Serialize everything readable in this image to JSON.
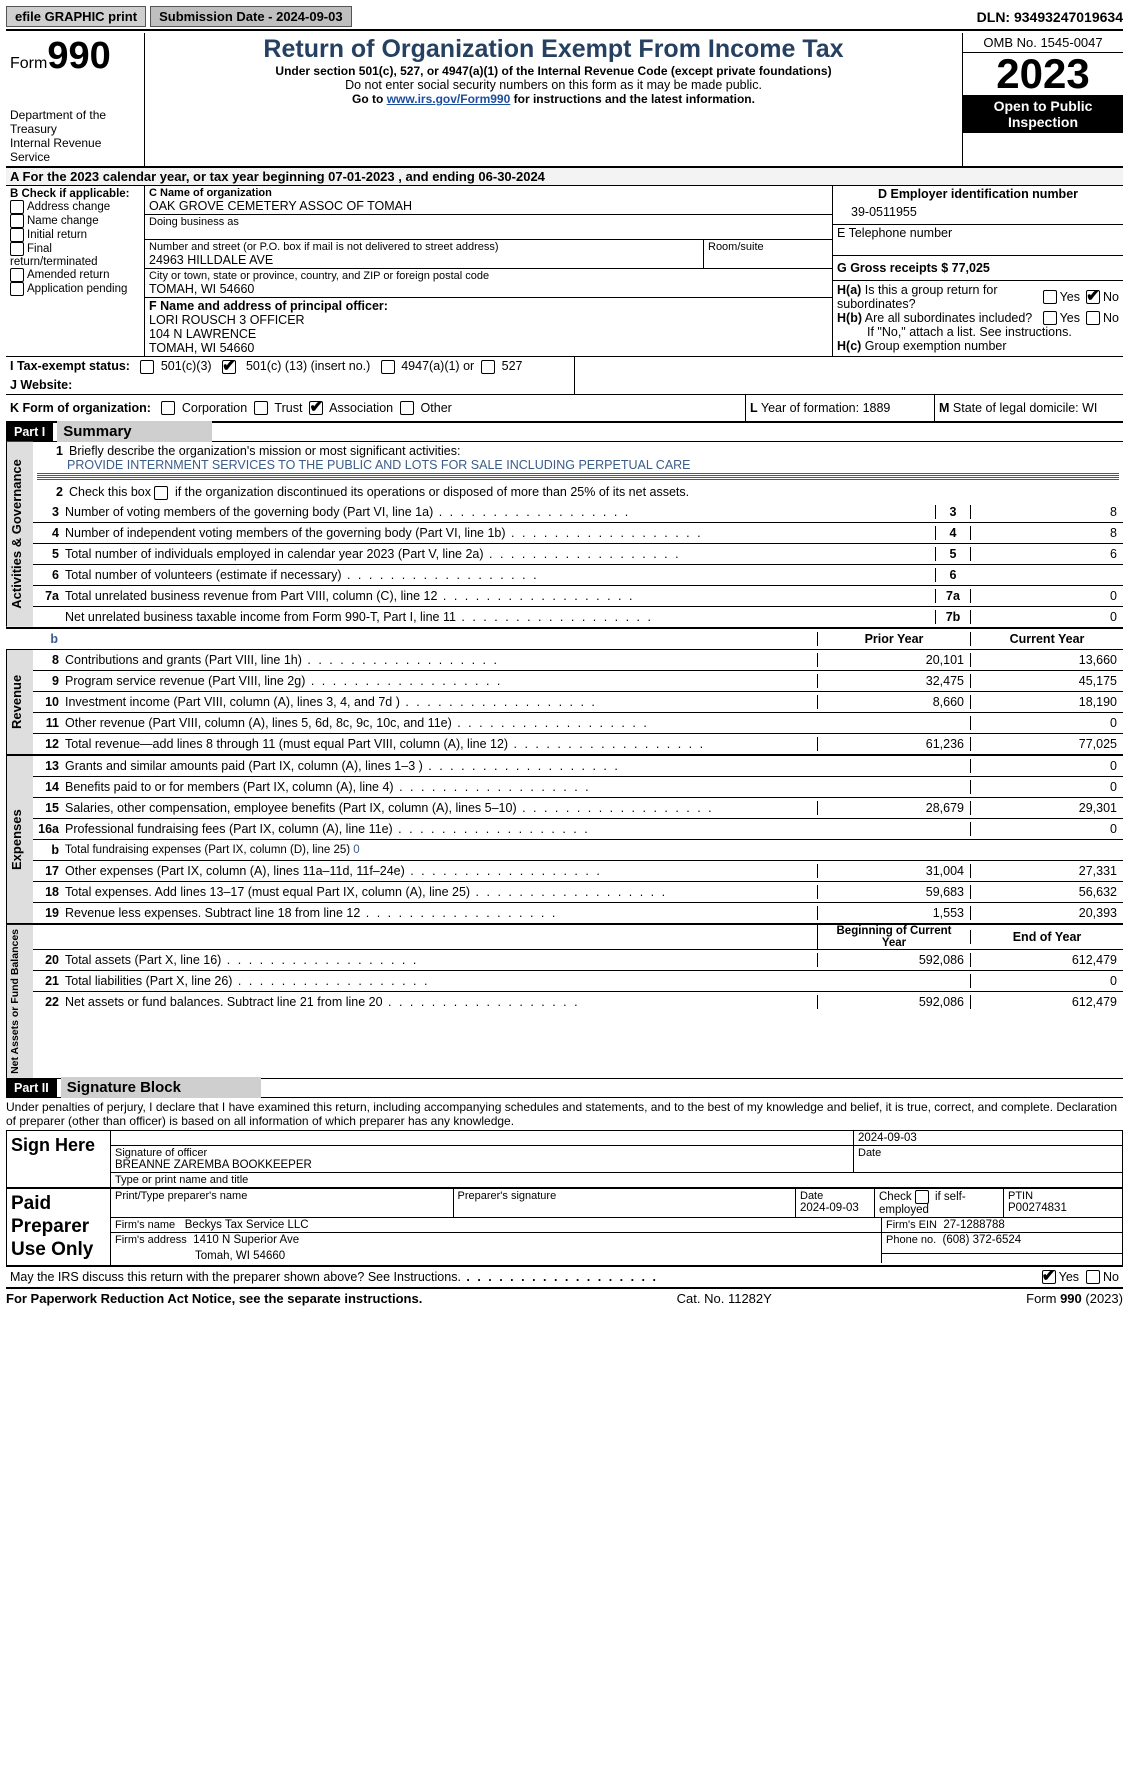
{
  "topbar": {
    "efile": "efile GRAPHIC print",
    "sub_label": "Submission Date - 2024-09-03",
    "dln": "DLN: 93493247019634"
  },
  "header": {
    "form_label": "Form",
    "form_num": "990",
    "title": "Return of Organization Exempt From Income Tax",
    "subtitle1": "Under section 501(c), 527, or 4947(a)(1) of the Internal Revenue Code (except private foundations)",
    "subtitle2": "Do not enter social security numbers on this form as it may be made public.",
    "subtitle3_pre": "Go to ",
    "subtitle3_link": "www.irs.gov/Form990",
    "subtitle3_post": " for instructions and the latest information.",
    "dept": "Department of the Treasury",
    "irs": "Internal Revenue Service",
    "omb": "OMB No. 1545-0047",
    "year": "2023",
    "inspect1": "Open to Public",
    "inspect2": "Inspection"
  },
  "section_a": "A For the 2023 calendar year, or tax year beginning 07-01-2023   , and ending 06-30-2024",
  "col_b": {
    "label": "B Check if applicable:",
    "items": [
      "Address change",
      "Name change",
      "Initial return",
      "Final return/terminated",
      "Amended return",
      "Application pending"
    ]
  },
  "col_c": {
    "c_label": "C Name of organization",
    "org_name": "OAK GROVE CEMETERY ASSOC OF TOMAH",
    "dba_label": "Doing business as",
    "addr_label": "Number and street (or P.O. box if mail is not delivered to street address)",
    "addr": "24963 HILLDALE AVE",
    "room_label": "Room/suite",
    "city_label": "City or town, state or province, country, and ZIP or foreign postal code",
    "city": "TOMAH, WI  54660",
    "f_label": "F  Name and address of principal officer:",
    "f_name": "LORI ROUSCH 3 OFFICER",
    "f_addr1": "104 N LAWRENCE",
    "f_addr2": "TOMAH, WI  54660"
  },
  "col_right": {
    "d_label": "D Employer identification number",
    "ein": "39-0511955",
    "e_label": "E Telephone number",
    "g_label": "G Gross receipts $ 77,025",
    "ha_label": "H(a)  Is this a group return for subordinates?",
    "hb_label": "H(b)  Are all subordinates included?",
    "hb_note": "If \"No,\" attach a list. See instructions.",
    "hc_label": "H(c)  Group exemption number",
    "yes": "Yes",
    "no": "No"
  },
  "row_i": {
    "label": "I    Tax-exempt status:",
    "opt1": "501(c)(3)",
    "opt2_pre": "501(c) (",
    "opt2_val": "13",
    "opt2_post": ") (insert no.)",
    "opt3": "4947(a)(1) or",
    "opt4": "527"
  },
  "row_j": {
    "label": "J   Website:"
  },
  "row_k": {
    "label": "K Form of organization:",
    "opts": [
      "Corporation",
      "Trust",
      "Association",
      "Other"
    ],
    "l_label": "L Year of formation: 1889",
    "m_label": "M State of legal domicile: WI"
  },
  "part1": {
    "header": "Part I",
    "title": "Summary"
  },
  "governance": {
    "label": "Activities & Governance",
    "l1": "Briefly describe the organization's mission or most significant activities:",
    "mission": "PROVIDE INTERNMENT SERVICES TO THE PUBLIC AND LOTS FOR SALE INCLUDING PERPETUAL CARE",
    "l2": "Check this box         if the organization discontinued its operations or disposed of more than 25% of its net assets.",
    "rows": [
      {
        "n": "3",
        "t": "Number of voting members of the governing body (Part VI, line 1a)",
        "c": "3",
        "v": "8"
      },
      {
        "n": "4",
        "t": "Number of independent voting members of the governing body (Part VI, line 1b)",
        "c": "4",
        "v": "8"
      },
      {
        "n": "5",
        "t": "Total number of individuals employed in calendar year 2023 (Part V, line 2a)",
        "c": "5",
        "v": "6"
      },
      {
        "n": "6",
        "t": "Total number of volunteers (estimate if necessary)",
        "c": "6",
        "v": ""
      },
      {
        "n": "7a",
        "t": "Total unrelated business revenue from Part VIII, column (C), line 12",
        "c": "7a",
        "v": "0"
      },
      {
        "n": "",
        "t": "Net unrelated business taxable income from Form 990-T, Part I, line 11",
        "c": "7b",
        "v": "0"
      }
    ]
  },
  "headers_row": {
    "b": "b",
    "prior": "Prior Year",
    "current": "Current Year"
  },
  "revenue": {
    "label": "Revenue",
    "rows": [
      {
        "n": "8",
        "t": "Contributions and grants (Part VIII, line 1h)",
        "p": "20,101",
        "c": "13,660"
      },
      {
        "n": "9",
        "t": "Program service revenue (Part VIII, line 2g)",
        "p": "32,475",
        "c": "45,175"
      },
      {
        "n": "10",
        "t": "Investment income (Part VIII, column (A), lines 3, 4, and 7d )",
        "p": "8,660",
        "c": "18,190"
      },
      {
        "n": "11",
        "t": "Other revenue (Part VIII, column (A), lines 5, 6d, 8c, 9c, 10c, and 11e)",
        "p": "",
        "c": "0"
      },
      {
        "n": "12",
        "t": "Total revenue—add lines 8 through 11 (must equal Part VIII, column (A), line 12)",
        "p": "61,236",
        "c": "77,025"
      }
    ]
  },
  "expenses": {
    "label": "Expenses",
    "rows": [
      {
        "n": "13",
        "t": "Grants and similar amounts paid (Part IX, column (A), lines 1–3 )",
        "p": "",
        "c": "0"
      },
      {
        "n": "14",
        "t": "Benefits paid to or for members (Part IX, column (A), line 4)",
        "p": "",
        "c": "0"
      },
      {
        "n": "15",
        "t": "Salaries, other compensation, employee benefits (Part IX, column (A), lines 5–10)",
        "p": "28,679",
        "c": "29,301"
      },
      {
        "n": "16a",
        "t": "Professional fundraising fees (Part IX, column (A), line 11e)",
        "p": "",
        "c": "0"
      },
      {
        "n": "b",
        "t": "Total fundraising expenses (Part IX, column (D), line 25) ",
        "fval": "0",
        "grey": true
      },
      {
        "n": "17",
        "t": "Other expenses (Part IX, column (A), lines 11a–11d, 11f–24e)",
        "p": "31,004",
        "c": "27,331"
      },
      {
        "n": "18",
        "t": "Total expenses. Add lines 13–17 (must equal Part IX, column (A), line 25)",
        "p": "59,683",
        "c": "56,632"
      },
      {
        "n": "19",
        "t": "Revenue less expenses. Subtract line 18 from line 12",
        "p": "1,553",
        "c": "20,393"
      }
    ]
  },
  "net_headers": {
    "begin": "Beginning of Current Year",
    "end": "End of Year"
  },
  "net": {
    "label": "Net Assets or Fund Balances",
    "rows": [
      {
        "n": "20",
        "t": "Total assets (Part X, line 16)",
        "p": "592,086",
        "c": "612,479"
      },
      {
        "n": "21",
        "t": "Total liabilities (Part X, line 26)",
        "p": "",
        "c": "0"
      },
      {
        "n": "22",
        "t": "Net assets or fund balances. Subtract line 21 from line 20",
        "p": "592,086",
        "c": "612,479"
      }
    ]
  },
  "part2": {
    "header": "Part II",
    "title": "Signature Block",
    "perjury": "Under penalties of perjury, I declare that I have examined this return, including accompanying schedules and statements, and to the best of my knowledge and belief, it is true, correct, and complete. Declaration of preparer (other than officer) is based on all information of which preparer has any knowledge."
  },
  "sign": {
    "left": "Sign Here",
    "date": "2024-09-03",
    "sig_label": "Signature of officer",
    "officer": "BREANNE ZAREMBA  BOOKKEEPER",
    "type_label": "Type or print name and title",
    "date_label": "Date"
  },
  "paid": {
    "left1": "Paid",
    "left2": "Preparer",
    "left3": "Use Only",
    "col1": "Print/Type preparer's name",
    "col2": "Preparer's signature",
    "col3_label": "Date",
    "col3": "2024-09-03",
    "col4_pre": "Check         if self-employed",
    "col5_label": "PTIN",
    "col5": "P00274831",
    "firm_label": "Firm's name",
    "firm": "Beckys Tax Service LLC",
    "ein_label": "Firm's EIN",
    "ein": "27-1288788",
    "addr_label": "Firm's address",
    "addr1": "1410 N Superior Ave",
    "addr2": "Tomah, WI  54660",
    "phone_label": "Phone no.",
    "phone": "(608) 372-6524"
  },
  "discuss": {
    "text": "May the IRS discuss this return with the preparer shown above? See Instructions.",
    "yes": "Yes",
    "no": "No"
  },
  "footer": {
    "left": "For Paperwork Reduction Act Notice, see the separate instructions.",
    "mid": "Cat. No. 11282Y",
    "right_pre": "Form ",
    "right_form": "990",
    "right_post": " (2023)"
  }
}
